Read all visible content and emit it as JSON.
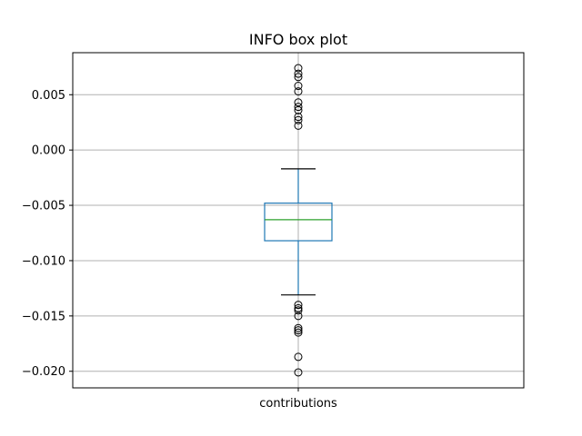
{
  "chart_data": {
    "type": "box",
    "title": "INFO box plot",
    "xlabel": "",
    "ylabel": "",
    "categories": [
      "contributions"
    ],
    "ylim": [
      -0.0215,
      0.0088
    ],
    "yticks": [
      {
        "value": 0.005,
        "label": "0.005"
      },
      {
        "value": 0.0,
        "label": "0.000"
      },
      {
        "value": -0.005,
        "label": "−0.005"
      },
      {
        "value": -0.01,
        "label": "−0.010"
      },
      {
        "value": -0.015,
        "label": "−0.015"
      },
      {
        "value": -0.02,
        "label": "−0.020"
      }
    ],
    "grid": true,
    "boxes": [
      {
        "category": "contributions",
        "whisker_low": -0.0131,
        "q1": -0.0082,
        "median": -0.0063,
        "q3": -0.0048,
        "whisker_high": -0.0017,
        "outliers": [
          0.0074,
          0.0069,
          0.0066,
          0.0058,
          0.0053,
          0.0043,
          0.0039,
          0.0036,
          0.003,
          0.0027,
          0.0022,
          -0.014,
          -0.0143,
          -0.0145,
          -0.015,
          -0.0161,
          -0.0163,
          -0.0165,
          -0.0187,
          -0.0201
        ]
      }
    ],
    "colors": {
      "box": "#1f77b4",
      "median": "#2ca02c",
      "whisker_cap": "#000000",
      "outlier": "#000000",
      "grid": "#b0b0b0"
    }
  }
}
